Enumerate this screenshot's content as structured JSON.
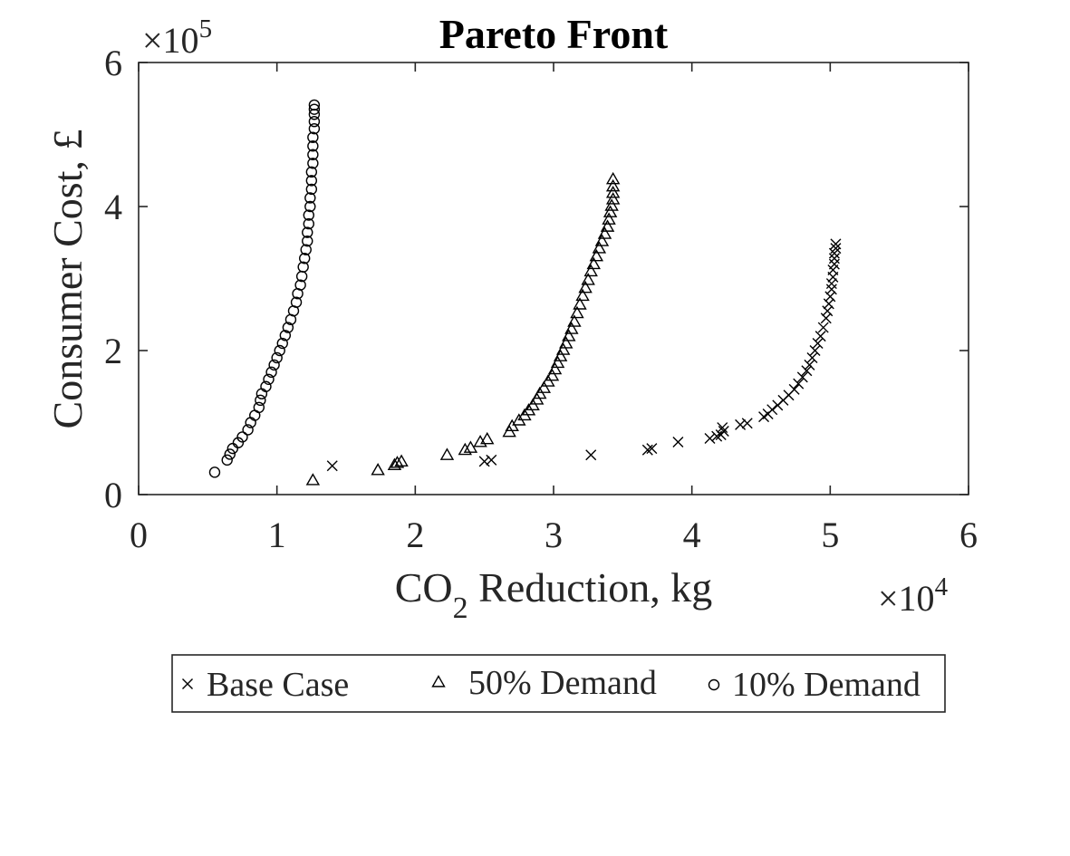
{
  "chart_data": {
    "type": "scatter",
    "title": "Pareto Front",
    "xlabel": "CO",
    "xlabel_sub": "2",
    "xlabel_rest": " Reduction, kg",
    "ylabel": "Consumer Cost, £",
    "x_multiplier": "×10",
    "x_multiplier_exp": "4",
    "y_multiplier": "×10",
    "y_multiplier_exp": "5",
    "xlim": [
      0,
      60000
    ],
    "ylim": [
      0,
      600000
    ],
    "x_ticks": [
      0,
      10000,
      20000,
      30000,
      40000,
      50000,
      60000
    ],
    "x_tick_labels": [
      "0",
      "1",
      "2",
      "3",
      "4",
      "5",
      "6"
    ],
    "y_ticks": [
      0,
      200000,
      400000,
      600000
    ],
    "y_tick_labels": [
      "0",
      "2",
      "4",
      "6"
    ],
    "grid": false,
    "legend_position": "bottom-outside",
    "series": [
      {
        "name": "Base Case",
        "marker": "x",
        "points": [
          [
            14000,
            40000
          ],
          [
            25000,
            46000
          ],
          [
            25500,
            48000
          ],
          [
            32700,
            55000
          ],
          [
            36800,
            62000
          ],
          [
            37100,
            64000
          ],
          [
            39000,
            73000
          ],
          [
            41300,
            78000
          ],
          [
            41800,
            81000
          ],
          [
            42100,
            83000
          ],
          [
            42300,
            88000
          ],
          [
            42200,
            93000
          ],
          [
            43500,
            97000
          ],
          [
            44000,
            99000
          ],
          [
            45200,
            108000
          ],
          [
            45500,
            112000
          ],
          [
            45800,
            118000
          ],
          [
            46200,
            124000
          ],
          [
            46600,
            131000
          ],
          [
            47000,
            138000
          ],
          [
            47400,
            146000
          ],
          [
            47700,
            154000
          ],
          [
            48000,
            163000
          ],
          [
            48300,
            172000
          ],
          [
            48500,
            180000
          ],
          [
            48700,
            190000
          ],
          [
            48900,
            200000
          ],
          [
            49100,
            210000
          ],
          [
            49300,
            220000
          ],
          [
            49500,
            232000
          ],
          [
            49700,
            245000
          ],
          [
            49800,
            255000
          ],
          [
            49900,
            265000
          ],
          [
            50000,
            275000
          ],
          [
            50100,
            285000
          ],
          [
            50100,
            293000
          ],
          [
            50200,
            302000
          ],
          [
            50200,
            312000
          ],
          [
            50300,
            320000
          ],
          [
            50300,
            328000
          ],
          [
            50300,
            335000
          ],
          [
            50400,
            342000
          ],
          [
            50400,
            348000
          ]
        ]
      },
      {
        "name": "50% Demand",
        "marker": "triangle",
        "points": [
          [
            12600,
            20000
          ],
          [
            17300,
            34000
          ],
          [
            18500,
            41000
          ],
          [
            18700,
            44000
          ],
          [
            19000,
            46000
          ],
          [
            22300,
            55000
          ],
          [
            23600,
            62000
          ],
          [
            24000,
            65000
          ],
          [
            24700,
            73000
          ],
          [
            25200,
            77000
          ],
          [
            26800,
            87000
          ],
          [
            27000,
            95000
          ],
          [
            27500,
            103000
          ],
          [
            27900,
            110000
          ],
          [
            28200,
            117000
          ],
          [
            28500,
            124000
          ],
          [
            28800,
            132000
          ],
          [
            29000,
            140000
          ],
          [
            29300,
            148000
          ],
          [
            29600,
            157000
          ],
          [
            29900,
            165000
          ],
          [
            30100,
            174000
          ],
          [
            30300,
            183000
          ],
          [
            30500,
            192000
          ],
          [
            30700,
            201000
          ],
          [
            30900,
            210000
          ],
          [
            31100,
            220000
          ],
          [
            31300,
            230000
          ],
          [
            31500,
            240000
          ],
          [
            31700,
            252000
          ],
          [
            31900,
            264000
          ],
          [
            32100,
            276000
          ],
          [
            32300,
            287000
          ],
          [
            32500,
            298000
          ],
          [
            32700,
            310000
          ],
          [
            32900,
            320000
          ],
          [
            33100,
            331000
          ],
          [
            33300,
            342000
          ],
          [
            33500,
            352000
          ],
          [
            33700,
            362000
          ],
          [
            33900,
            372000
          ],
          [
            34000,
            382000
          ],
          [
            34100,
            392000
          ],
          [
            34200,
            401000
          ],
          [
            34300,
            410000
          ],
          [
            34300,
            419000
          ],
          [
            34300,
            428000
          ],
          [
            34300,
            438000
          ]
        ]
      },
      {
        "name": "10% Demand",
        "marker": "circle",
        "points": [
          [
            5500,
            31000
          ],
          [
            6400,
            48000
          ],
          [
            6600,
            56000
          ],
          [
            6800,
            64000
          ],
          [
            7200,
            72000
          ],
          [
            7500,
            80000
          ],
          [
            7900,
            90000
          ],
          [
            8100,
            100000
          ],
          [
            8400,
            110000
          ],
          [
            8700,
            121000
          ],
          [
            8800,
            131000
          ],
          [
            8900,
            140000
          ],
          [
            9200,
            150000
          ],
          [
            9400,
            160000
          ],
          [
            9600,
            170000
          ],
          [
            9800,
            180000
          ],
          [
            10000,
            190000
          ],
          [
            10200,
            200000
          ],
          [
            10400,
            210000
          ],
          [
            10600,
            221000
          ],
          [
            10800,
            232000
          ],
          [
            11000,
            243000
          ],
          [
            11200,
            255000
          ],
          [
            11400,
            267000
          ],
          [
            11500,
            279000
          ],
          [
            11700,
            291000
          ],
          [
            11800,
            303000
          ],
          [
            11900,
            316000
          ],
          [
            12000,
            328000
          ],
          [
            12100,
            340000
          ],
          [
            12200,
            352000
          ],
          [
            12200,
            364000
          ],
          [
            12300,
            376000
          ],
          [
            12300,
            388000
          ],
          [
            12400,
            400000
          ],
          [
            12400,
            412000
          ],
          [
            12500,
            424000
          ],
          [
            12500,
            436000
          ],
          [
            12500,
            448000
          ],
          [
            12600,
            460000
          ],
          [
            12600,
            472000
          ],
          [
            12600,
            484000
          ],
          [
            12600,
            496000
          ],
          [
            12700,
            508000
          ],
          [
            12700,
            518000
          ],
          [
            12700,
            528000
          ],
          [
            12700,
            535000
          ],
          [
            12700,
            541000
          ]
        ]
      }
    ]
  }
}
